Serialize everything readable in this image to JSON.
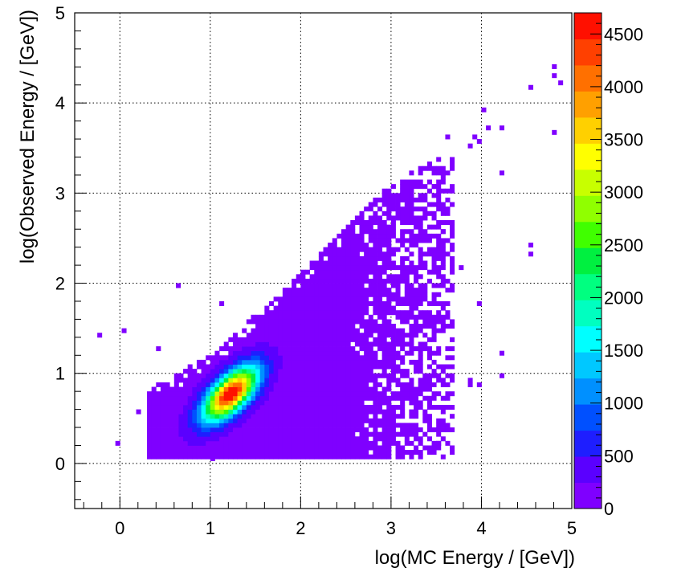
{
  "chart_data": {
    "type": "heatmap",
    "title": "",
    "xlabel": "log(MC Energy / [GeV])",
    "ylabel": "log(Observed Energy / [GeV])",
    "xlim": [
      -0.5,
      5
    ],
    "ylim": [
      -0.5,
      5
    ],
    "x_ticks": [
      0,
      1,
      2,
      3,
      4,
      5
    ],
    "y_ticks": [
      0,
      1,
      2,
      3,
      4,
      5
    ],
    "grid": true,
    "bin_width": 0.05,
    "colorbar": {
      "min": 0,
      "max": 4700,
      "ticks": [
        0,
        500,
        1000,
        1500,
        2000,
        2500,
        3000,
        3500,
        4000,
        4500
      ],
      "palette": [
        "#7f00ff",
        "#5a00ff",
        "#1e1eff",
        "#0050ff",
        "#0090ff",
        "#00c8ff",
        "#00ffff",
        "#00ffc0",
        "#00ff80",
        "#00f040",
        "#40ff00",
        "#90ff00",
        "#c8ff00",
        "#ffff00",
        "#ffd000",
        "#ffa000",
        "#ff7000",
        "#ff4000",
        "#ff1000"
      ]
    },
    "density_model": {
      "main_lobe": {
        "center_x": 1.2,
        "center_y": 0.75,
        "peak_count": 4600
      },
      "occupied_band": {
        "lower_y": 0.05,
        "upper_y_at_x": [
          [
            0.3,
            0.8
          ],
          [
            1.0,
            1.2
          ],
          [
            2.0,
            2.1
          ],
          [
            3.0,
            3.1
          ],
          [
            3.6,
            3.4
          ]
        ]
      }
    },
    "isolated_bins": [
      [
        -0.25,
        1.4
      ],
      [
        0.02,
        1.45
      ],
      [
        0.62,
        1.95
      ],
      [
        0.4,
        1.25
      ],
      [
        -0.05,
        0.2
      ],
      [
        0.18,
        0.55
      ],
      [
        1.1,
        1.75
      ],
      [
        1.0,
        0.03
      ],
      [
        3.5,
        0.3
      ],
      [
        3.5,
        0.2
      ],
      [
        3.85,
        0.85
      ],
      [
        3.85,
        0.9
      ],
      [
        4.2,
        1.2
      ],
      [
        4.2,
        0.95
      ],
      [
        3.95,
        0.85
      ],
      [
        3.95,
        1.75
      ],
      [
        4.0,
        3.9
      ],
      [
        4.05,
        3.7
      ],
      [
        3.95,
        3.55
      ],
      [
        3.9,
        3.6
      ],
      [
        4.2,
        3.7
      ],
      [
        4.2,
        3.2
      ],
      [
        3.6,
        3.6
      ],
      [
        3.85,
        3.5
      ],
      [
        4.52,
        4.15
      ],
      [
        4.52,
        2.4
      ],
      [
        4.52,
        2.3
      ],
      [
        4.78,
        4.38
      ],
      [
        4.78,
        4.28
      ],
      [
        4.85,
        4.2
      ],
      [
        4.78,
        3.65
      ],
      [
        3.75,
        2.15
      ],
      [
        3.5,
        2.35
      ],
      [
        3.35,
        2.7
      ],
      [
        3.55,
        2.55
      ],
      [
        3.45,
        3.05
      ]
    ]
  }
}
